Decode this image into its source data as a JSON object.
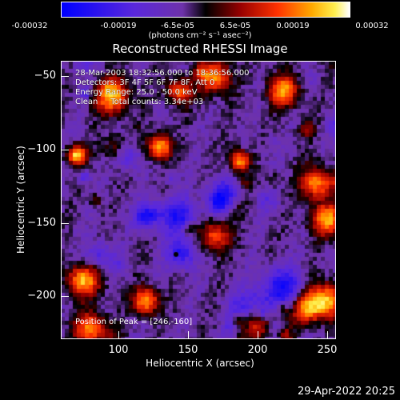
{
  "colorbar": {
    "ticks": [
      "-0.00032",
      "-0.00019",
      "-6.5e-05",
      "6.5e-05",
      "0.00019",
      "0.00032"
    ],
    "units": "(photons cm⁻² s⁻¹ asec⁻²)"
  },
  "title": "Reconstructed RHESSI Image",
  "info": {
    "time": "28-Mar-2003 18:32:56.000 to 18:36:56.000",
    "detectors": "Detectors: 3F 4F 5F 6F 7F 8F, Att 0",
    "energy": "Energy Range: 25.0 - 50.0 keV",
    "clean": "Clean     Total counts: 3.34e+03"
  },
  "peak_label": "Position of Peak = [246,-160]",
  "axes": {
    "xlabel": "Heliocentric X (arcsec)",
    "ylabel": "Heliocentric Y (arcsec)",
    "xticks": [
      "100",
      "150",
      "200",
      "250"
    ],
    "yticks": [
      "−50",
      "−100",
      "−150",
      "−200"
    ]
  },
  "datestamp": "29-Apr-2022 20:25",
  "colors": {
    "background": "#000000",
    "frame": "#ffffff"
  }
}
